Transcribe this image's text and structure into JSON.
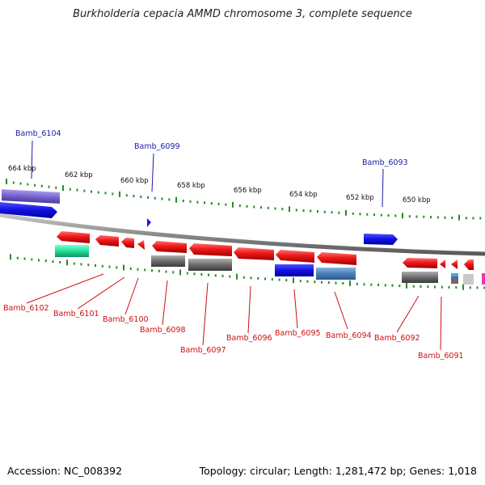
{
  "title": "Burkholderia cepacia AMMD chromosome 3, complete sequence",
  "footer": {
    "accession": "Accession: NC_008392",
    "summary": "Topology: circular; Length: 1,281,472 bp; Genes: 1,018"
  },
  "scale_labels": [
    "664 kbp",
    "662 kbp",
    "660 kbp",
    "658 kbp",
    "656 kbp",
    "654 kbp",
    "652 kbp",
    "650 kbp"
  ],
  "genes_top": [
    "Bamb_6104",
    "Bamb_6099",
    "Bamb_6093"
  ],
  "genes_bottom": [
    "Bamb_6102",
    "Bamb_6101",
    "Bamb_6100",
    "Bamb_6098",
    "Bamb_6097",
    "Bamb_6096",
    "Bamb_6095",
    "Bamb_6094",
    "Bamb_6092",
    "Bamb_6091"
  ],
  "colors": {
    "cds_red": "#e8141c",
    "blue": "#1010dd",
    "lavender": "#7a68d0",
    "gray": "#6a6a6a",
    "teal": "#28e0a0",
    "steel": "#4a80b8",
    "ticks": "#2a8a2a",
    "label_top": "#1a1aa8",
    "label_bottom": "#cc1010",
    "backbone": "#8a8a8a"
  }
}
